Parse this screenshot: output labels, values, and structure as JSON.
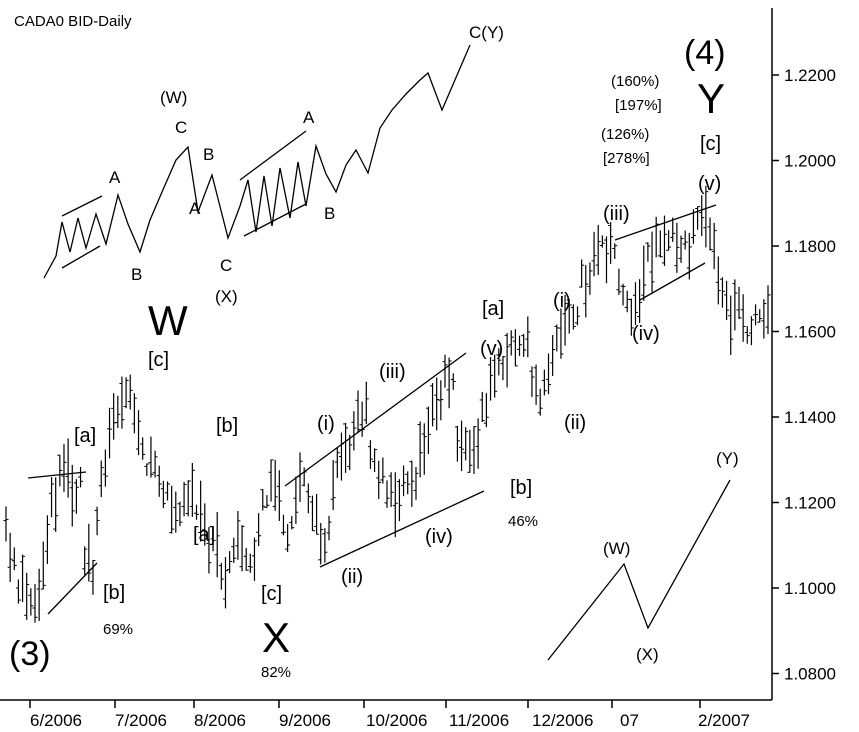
{
  "chart_data": {
    "type": "ohlc",
    "title": "CADA0 BID-Daily",
    "xlabel": "",
    "ylabel": "",
    "ylim": [
      1.076,
      1.232
    ],
    "grid": false,
    "y_ticks": [
      {
        "value": 1.22,
        "label": "1.2200"
      },
      {
        "value": 1.2,
        "label": "1.2000"
      },
      {
        "value": 1.18,
        "label": "1.1800"
      },
      {
        "value": 1.16,
        "label": "1.1600"
      },
      {
        "value": 1.14,
        "label": "1.1400"
      },
      {
        "value": 1.12,
        "label": "1.1200"
      },
      {
        "value": 1.1,
        "label": "1.1000"
      },
      {
        "value": 1.08,
        "label": "1.0800"
      }
    ],
    "x_ticks": [
      {
        "label": "6/2006"
      },
      {
        "label": "7/2006"
      },
      {
        "label": "8/2006"
      },
      {
        "label": "9/2006"
      },
      {
        "label": "10/2006"
      },
      {
        "label": "11/2006"
      },
      {
        "label": "12/2006"
      },
      {
        "label": "07"
      },
      {
        "label": "2/2007"
      }
    ],
    "price_path": [
      [
        1.126,
        1.112
      ],
      [
        1.102,
        1.101
      ],
      [
        1.096,
        1.094
      ],
      [
        1.106,
        1.11
      ],
      [
        1.122,
        1.126
      ],
      [
        1.128,
        1.12
      ],
      [
        1.126,
        1.11
      ],
      [
        1.104,
        1.112
      ],
      [
        1.132,
        1.136
      ],
      [
        1.14,
        1.142
      ],
      [
        1.146,
        1.14
      ],
      [
        1.134,
        1.128
      ],
      [
        1.13,
        1.126
      ],
      [
        1.124,
        1.118
      ],
      [
        1.116,
        1.12
      ],
      [
        1.124,
        1.12
      ],
      [
        1.118,
        1.112
      ],
      [
        1.108,
        1.104
      ],
      [
        1.104,
        1.108
      ],
      [
        1.11,
        1.106
      ],
      [
        1.108,
        1.116
      ],
      [
        1.122,
        1.12
      ],
      [
        1.124,
        1.116
      ],
      [
        1.112,
        1.12
      ],
      [
        1.128,
        1.12
      ],
      [
        1.114,
        1.11
      ],
      [
        1.114,
        1.124
      ],
      [
        1.128,
        1.132
      ],
      [
        1.136,
        1.14
      ],
      [
        1.141,
        1.134
      ],
      [
        1.124,
        1.128
      ],
      [
        1.12,
        1.118
      ],
      [
        1.124,
        1.128
      ],
      [
        1.126,
        1.13
      ],
      [
        1.135,
        1.14
      ],
      [
        1.145,
        1.148
      ],
      [
        1.146,
        1.138
      ],
      [
        1.13,
        1.132
      ],
      [
        1.138,
        1.142
      ],
      [
        1.146,
        1.15
      ],
      [
        1.15,
        1.154
      ],
      [
        1.156,
        1.158
      ],
      [
        1.156,
        1.15
      ],
      [
        1.145,
        1.15
      ],
      [
        1.152,
        1.156
      ],
      [
        1.16,
        1.164
      ],
      [
        1.166,
        1.172
      ],
      [
        1.176,
        1.178
      ],
      [
        1.18,
        1.178
      ],
      [
        1.176,
        1.172
      ],
      [
        1.168,
        1.164
      ],
      [
        1.172,
        1.176
      ],
      [
        1.18,
        1.182
      ],
      [
        1.184,
        1.182
      ],
      [
        1.18,
        1.178
      ],
      [
        1.182,
        1.185
      ],
      [
        1.186,
        1.184
      ],
      [
        1.178,
        1.172
      ],
      [
        1.168,
        1.164
      ],
      [
        1.166,
        1.162
      ],
      [
        1.16,
        1.162
      ],
      [
        1.164,
        1.168
      ]
    ],
    "annotations": [
      {
        "text": "(3)",
        "size": "large"
      },
      {
        "text": "[a]"
      },
      {
        "text": "[b]"
      },
      {
        "text": "69%"
      },
      {
        "text": "W",
        "size": "large"
      },
      {
        "text": "[c]"
      },
      {
        "text": "[b]"
      },
      {
        "text": "[a]"
      },
      {
        "text": "[c]"
      },
      {
        "text": "X",
        "size": "large"
      },
      {
        "text": "82%"
      },
      {
        "text": "(i)"
      },
      {
        "text": "(ii)"
      },
      {
        "text": "(iii)"
      },
      {
        "text": "(iv)"
      },
      {
        "text": "[a]"
      },
      {
        "text": "(v)"
      },
      {
        "text": "[b]"
      },
      {
        "text": "46%"
      },
      {
        "text": "(i)"
      },
      {
        "text": "(ii)"
      },
      {
        "text": "(iii)"
      },
      {
        "text": "(iv)"
      },
      {
        "text": "(v)"
      },
      {
        "text": "[c]"
      },
      {
        "text": "Y",
        "size": "large"
      },
      {
        "text": "(4)",
        "size": "large"
      },
      {
        "text": "(160%)"
      },
      {
        "text": "[197%]"
      },
      {
        "text": "(126%)"
      },
      {
        "text": "[278%]"
      },
      {
        "text": "A"
      },
      {
        "text": "B"
      },
      {
        "text": "C"
      },
      {
        "text": "(W)"
      },
      {
        "text": "B"
      },
      {
        "text": "A"
      },
      {
        "text": "C"
      },
      {
        "text": "(X)"
      },
      {
        "text": "A"
      },
      {
        "text": "B"
      },
      {
        "text": "C(Y)"
      },
      {
        "text": "(W)"
      },
      {
        "text": "(X)"
      },
      {
        "text": "(Y)"
      }
    ]
  }
}
